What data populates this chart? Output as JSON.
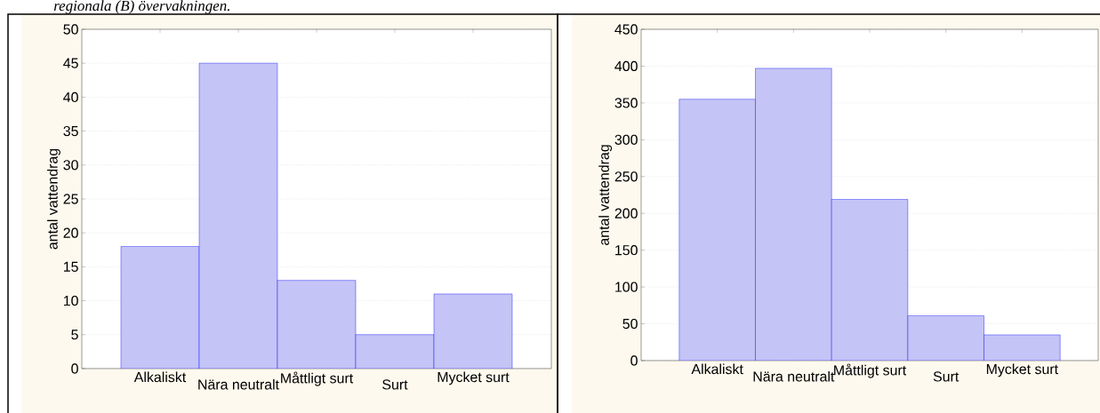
{
  "chart_data": [
    {
      "type": "bar",
      "annotations": [
        "regionala (B) övervakningen."
      ],
      "ylabel": "antal vattendrag",
      "categories": [
        "Alkaliskt",
        "Nära neutralt",
        "Måttligt surt",
        "Surt",
        "Mycket surt"
      ],
      "values": [
        18,
        45,
        13,
        5,
        11
      ],
      "color": "#c4c4f6",
      "ylim": [
        0,
        50
      ],
      "yticks": [
        0,
        5,
        10,
        15,
        20,
        25,
        30,
        35,
        40,
        45,
        50
      ],
      "grid": "y"
    },
    {
      "type": "bar",
      "ylabel": "antal vattendrag",
      "categories": [
        "Alkaliskt",
        "Nära neutralt",
        "Måttligt surt",
        "Surt",
        "Mycket surt"
      ],
      "values": [
        355,
        397,
        219,
        61,
        35
      ],
      "color": "#c4c4f6",
      "ylim": [
        0,
        450
      ],
      "yticks": [
        0,
        50,
        100,
        150,
        200,
        250,
        300,
        350,
        400,
        450
      ],
      "grid": "y"
    }
  ]
}
